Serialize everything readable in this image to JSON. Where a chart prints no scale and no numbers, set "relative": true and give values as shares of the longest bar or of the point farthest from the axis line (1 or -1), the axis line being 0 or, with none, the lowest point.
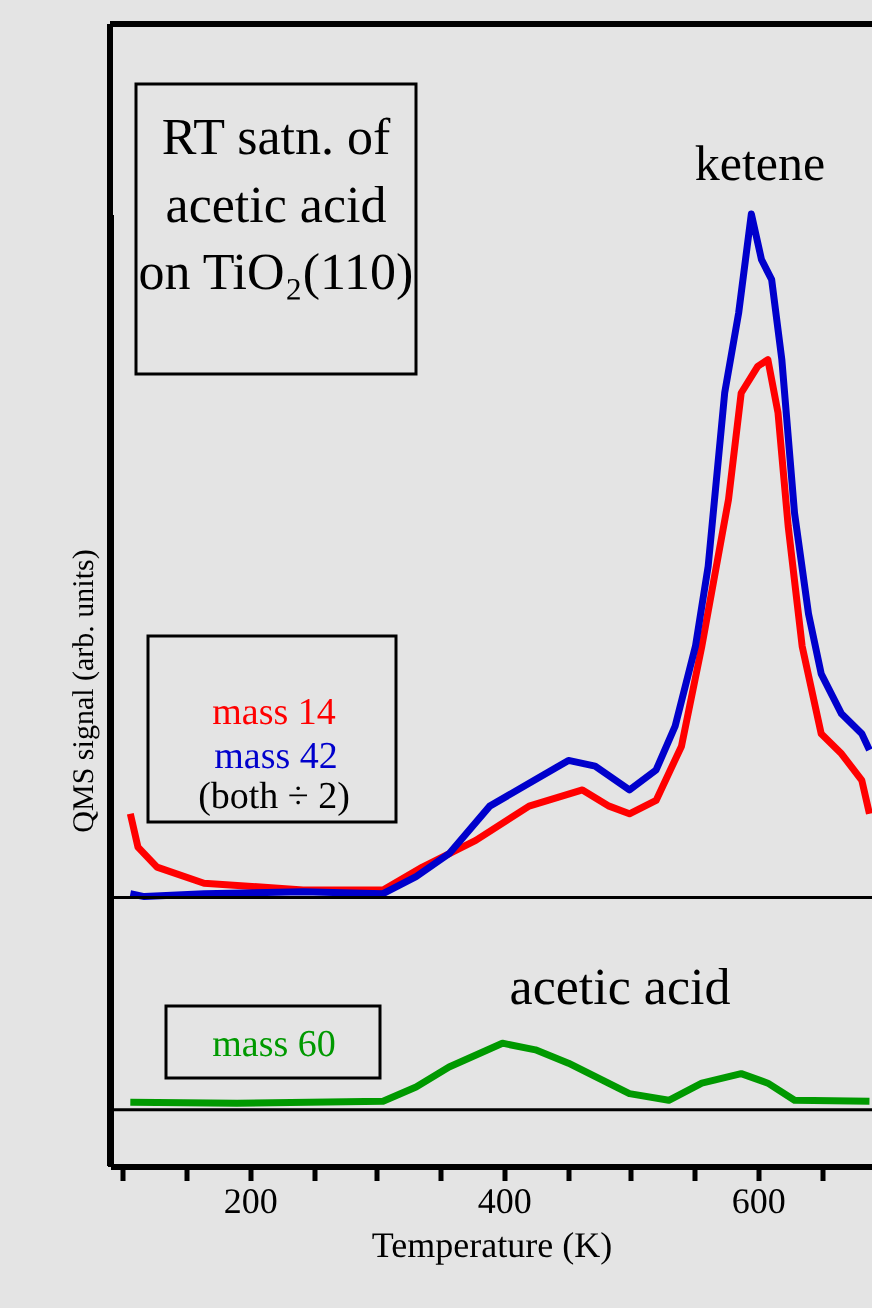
{
  "chart_data": {
    "type": "line",
    "relative": true,
    "xlabel": "Temperature (K)",
    "ylabel": "QMS signal (arb. units)",
    "xlim": [
      90,
      690
    ],
    "xticks": [
      {
        "value": 100,
        "label": null
      },
      {
        "value": 150,
        "label": null
      },
      200,
      {
        "value": 250,
        "label": null
      },
      {
        "value": 300,
        "label": null
      },
      {
        "value": 350,
        "label": null
      },
      400,
      {
        "value": 450,
        "label": null
      },
      {
        "value": 500,
        "label": null
      },
      {
        "value": 550,
        "label": null
      },
      600,
      {
        "value": 650,
        "label": null
      }
    ],
    "legend": false,
    "grid": false,
    "line_style": "solid",
    "annotations": [
      "RT satn. of\nacetic acid\non TiO₂(110)",
      "(both ÷ 2)",
      "ketene",
      "acetic acid"
    ],
    "ref_lines": [
      {
        "axis": "y",
        "value": 0.282,
        "color": "#000000"
      },
      {
        "axis": "y",
        "value": 0.059,
        "color": "#000000"
      }
    ],
    "series": [
      {
        "name": "mass 14",
        "color": "#ff0000",
        "x": [
          106,
          112,
          127,
          164,
          242,
          305,
          336,
          378,
          420,
          462,
          483,
          499,
          520,
          540,
          556,
          577,
          587,
          600,
          608,
          616,
          624,
          635,
          650,
          666,
          682,
          688
        ],
        "values": [
          0.37,
          0.335,
          0.314,
          0.297,
          0.29,
          0.29,
          0.314,
          0.342,
          0.378,
          0.395,
          0.378,
          0.37,
          0.384,
          0.441,
          0.546,
          0.7,
          0.812,
          0.84,
          0.847,
          0.791,
          0.672,
          0.546,
          0.454,
          0.433,
          0.405,
          0.37
        ]
      },
      {
        "name": "mass 42",
        "color": "#0000cc",
        "x": [
          106,
          117,
          164,
          242,
          305,
          331,
          357,
          389,
          420,
          451,
          472,
          499,
          520,
          535,
          551,
          561,
          574,
          585,
          595,
          603,
          611,
          619,
          629,
          640,
          650,
          666,
          682,
          688
        ],
        "values": [
          0.286,
          0.283,
          0.286,
          0.288,
          0.286,
          0.304,
          0.328,
          0.378,
          0.402,
          0.426,
          0.42,
          0.395,
          0.416,
          0.462,
          0.546,
          0.63,
          0.812,
          0.896,
          1,
          0.952,
          0.931,
          0.847,
          0.686,
          0.58,
          0.517,
          0.475,
          0.454,
          0.437
        ]
      },
      {
        "name": "mass 60",
        "color": "#009900",
        "x": [
          106,
          190,
          305,
          331,
          357,
          399,
          425,
          451,
          499,
          530,
          556,
          587,
          608,
          629,
          688
        ],
        "values": [
          0.067,
          0.066,
          0.068,
          0.083,
          0.104,
          0.129,
          0.122,
          0.108,
          0.076,
          0.069,
          0.087,
          0.097,
          0.087,
          0.069,
          0.068
        ]
      }
    ]
  }
}
